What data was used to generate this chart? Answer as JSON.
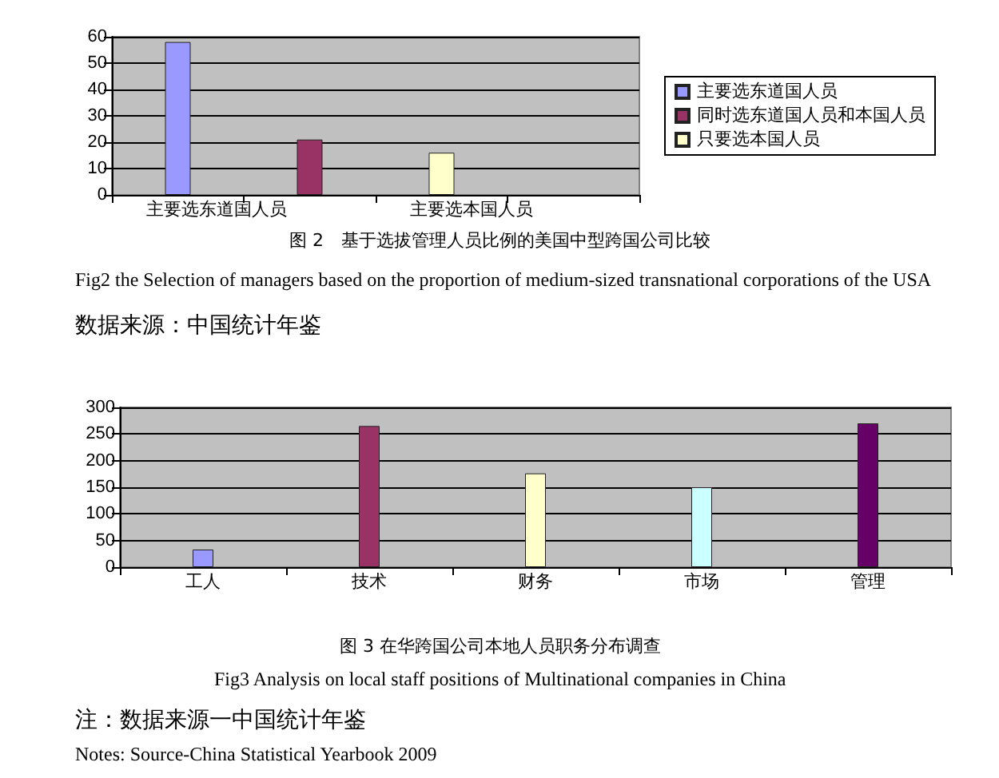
{
  "chart_data": [
    {
      "type": "bar",
      "title": "图 2　基于选拔管理人员比例的美国中型跨国公司比较",
      "subtitle": "Fig2 the Selection of managers based on the proportion of medium-sized transnational corporations of the USA",
      "annotations": [
        "数据来源：中国统计年鉴"
      ],
      "categories": [
        "主要选东道国人员",
        null,
        "主要选本国人员",
        null
      ],
      "series": [
        {
          "name": "主要选东道国人员",
          "color": "#9999ff",
          "values": [
            58,
            null,
            null,
            null
          ]
        },
        {
          "name": "同时选东道国人员和本国人员",
          "color": "#993366",
          "values": [
            null,
            21,
            null,
            null
          ]
        },
        {
          "name": "只要选本国人员",
          "color": "#ffffcc",
          "values": [
            null,
            null,
            16,
            null
          ]
        }
      ],
      "ylim": [
        0,
        60
      ],
      "yticks": [
        0,
        10,
        20,
        30,
        40,
        50,
        60
      ],
      "grid": "y",
      "legend": "right"
    },
    {
      "type": "bar",
      "title": "图 3 在华跨国公司本地人员职务分布调查",
      "subtitle": "Fig3 Analysis on local staff positions of Multinational companies in China",
      "annotations": [
        "注：数据来源一中国统计年鉴",
        "Notes: Source-China Statistical Yearbook 2009"
      ],
      "categories": [
        "工人",
        "技术",
        "财务",
        "市场",
        "管理"
      ],
      "values": [
        33,
        265,
        176,
        150,
        270
      ],
      "colors": [
        "#9999ff",
        "#993366",
        "#ffffcc",
        "#ccffff",
        "#660066"
      ],
      "ylim": [
        0,
        300
      ],
      "yticks": [
        0,
        50,
        100,
        150,
        200,
        250,
        300
      ],
      "grid": "y",
      "legend": false
    }
  ]
}
